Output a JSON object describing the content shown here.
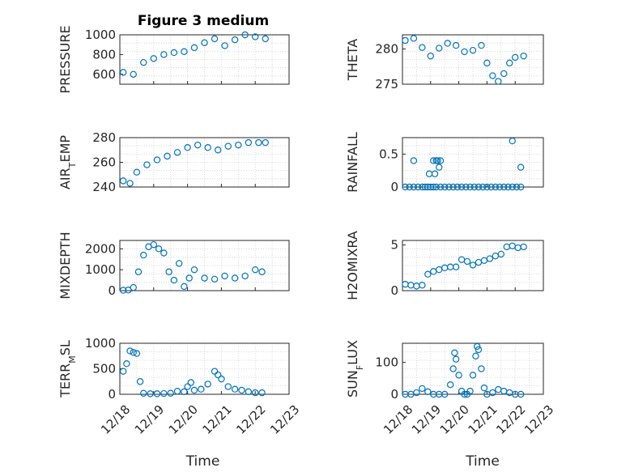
{
  "figure": {
    "title": "Figure 3 medium"
  },
  "colors": {
    "marker": "#0072BD",
    "axis": "#262626",
    "grid": "#cfcfcf"
  },
  "chart_data": [
    {
      "type": "scatter",
      "title": "Figure 3 medium",
      "ylabel": "PRESSURE",
      "ylim": [
        500,
        1000
      ],
      "yticks": [
        600,
        800,
        1000
      ],
      "yticklabels": [
        "600",
        "800",
        "1000"
      ],
      "xlim": [
        "12/18",
        "12/22"
      ],
      "grid": true,
      "show_xticklabels": false,
      "x": [
        0.1,
        0.4,
        0.7,
        1.0,
        1.3,
        1.6,
        1.9,
        2.2,
        2.5,
        2.8,
        3.1,
        3.4,
        3.7,
        4.0,
        4.3
      ],
      "y": [
        620,
        600,
        720,
        760,
        800,
        820,
        830,
        870,
        920,
        960,
        890,
        950,
        1000,
        980,
        960
      ]
    },
    {
      "type": "scatter",
      "ylabel": "THETA",
      "ylim": [
        275,
        282
      ],
      "yticks": [
        275,
        280
      ],
      "yticklabels": [
        "275",
        "280"
      ],
      "xlim": [
        "12/18",
        "12/22"
      ],
      "grid": true,
      "show_xticklabels": false,
      "x": [
        0.1,
        0.4,
        0.7,
        1.0,
        1.3,
        1.6,
        1.9,
        2.2,
        2.5,
        2.8,
        3.0,
        3.2,
        3.4,
        3.6,
        3.8,
        4.0,
        4.3
      ],
      "y": [
        281.2,
        281.5,
        280.2,
        279.0,
        280.1,
        280.8,
        280.5,
        279.6,
        279.8,
        280.5,
        278.0,
        276.2,
        275.4,
        276.5,
        278.0,
        278.8,
        279.0
      ]
    },
    {
      "type": "scatter",
      "ylabel": "AIR_TEMP",
      "ylim": [
        240,
        280
      ],
      "yticks": [
        240,
        260,
        280
      ],
      "yticklabels": [
        "240",
        "260",
        "280"
      ],
      "xlim": [
        "12/18",
        "12/22"
      ],
      "grid": true,
      "show_xticklabels": false,
      "x": [
        0.1,
        0.3,
        0.5,
        0.8,
        1.1,
        1.4,
        1.7,
        2.0,
        2.3,
        2.6,
        2.9,
        3.2,
        3.5,
        3.8,
        4.1,
        4.3
      ],
      "y": [
        245,
        243,
        252,
        258,
        262,
        265,
        268,
        272,
        274,
        272,
        270,
        273,
        274,
        276,
        276,
        276
      ]
    },
    {
      "type": "scatter",
      "ylabel": "RAINFALL",
      "ylim": [
        0,
        0.75
      ],
      "yticks": [
        0,
        0.5
      ],
      "yticklabels": [
        "0",
        "0.5"
      ],
      "xlim": [
        "12/18",
        "12/22"
      ],
      "grid": true,
      "show_xticklabels": false,
      "x": [
        0.1,
        0.25,
        0.4,
        0.55,
        0.7,
        0.8,
        0.9,
        1.0,
        1.1,
        1.2,
        1.35,
        1.5,
        1.65,
        1.8,
        1.95,
        2.1,
        2.25,
        2.4,
        2.55,
        2.7,
        2.85,
        3.0,
        3.15,
        3.3,
        3.45,
        3.6,
        3.75,
        3.9,
        4.05,
        4.2,
        0.4,
        0.95,
        1.1,
        1.15,
        1.2,
        1.3,
        1.25,
        1.35,
        3.9,
        4.2
      ],
      "y": [
        0,
        0,
        0,
        0,
        0,
        0,
        0,
        0,
        0,
        0,
        0,
        0,
        0,
        0,
        0,
        0,
        0,
        0,
        0,
        0,
        0,
        0,
        0,
        0,
        0,
        0,
        0,
        0,
        0,
        0,
        0.4,
        0.2,
        0.4,
        0.2,
        0.4,
        0.3,
        0.4,
        0.4,
        0.7,
        0.3
      ]
    },
    {
      "type": "scatter",
      "ylabel": "MIXDEPTH",
      "ylim": [
        0,
        2400
      ],
      "yticks": [
        0,
        1000,
        2000
      ],
      "yticklabels": [
        "0",
        "1000",
        "2000"
      ],
      "xlim": [
        "12/18",
        "12/22"
      ],
      "grid": true,
      "show_xticklabels": false,
      "x": [
        0.1,
        0.25,
        0.4,
        0.55,
        0.7,
        0.85,
        1.0,
        1.15,
        1.3,
        1.45,
        1.6,
        1.75,
        1.9,
        2.05,
        2.2,
        2.5,
        2.8,
        3.1,
        3.4,
        3.7,
        4.0,
        4.2
      ],
      "y": [
        20,
        30,
        150,
        900,
        1700,
        2100,
        2200,
        2000,
        1800,
        900,
        500,
        1300,
        200,
        600,
        1000,
        600,
        550,
        700,
        600,
        700,
        1000,
        900
      ]
    },
    {
      "type": "scatter",
      "ylabel": "H2OMIXRA",
      "ylim": [
        0,
        5.5
      ],
      "yticks": [
        0,
        5
      ],
      "yticklabels": [
        "0",
        "5"
      ],
      "xlim": [
        "12/18",
        "12/22"
      ],
      "grid": true,
      "show_xticklabels": false,
      "x": [
        0.1,
        0.3,
        0.5,
        0.7,
        0.9,
        1.1,
        1.3,
        1.5,
        1.7,
        1.9,
        2.1,
        2.3,
        2.5,
        2.7,
        2.9,
        3.1,
        3.3,
        3.5,
        3.7,
        3.9,
        4.1,
        4.3
      ],
      "y": [
        0.7,
        0.6,
        0.5,
        0.6,
        1.8,
        2.1,
        2.3,
        2.5,
        2.6,
        2.6,
        3.4,
        3.2,
        2.8,
        3.1,
        3.3,
        3.5,
        3.8,
        4.0,
        4.8,
        4.9,
        4.7,
        4.8
      ]
    },
    {
      "type": "scatter",
      "ylabel": "TERR_MSL",
      "ylim": [
        0,
        1000
      ],
      "yticks": [
        0,
        500,
        1000
      ],
      "yticklabels": [
        "0",
        "500",
        "1000"
      ],
      "xlabel": "Time",
      "xlim": [
        "12/18",
        "12/23"
      ],
      "xticks": [
        0,
        1,
        2,
        3,
        4,
        5
      ],
      "xticklabels": [
        "12/18",
        "12/19",
        "12/20",
        "12/21",
        "12/22",
        "12/23"
      ],
      "grid": true,
      "x": [
        0.1,
        0.2,
        0.3,
        0.4,
        0.5,
        0.6,
        0.7,
        0.9,
        1.1,
        1.3,
        1.5,
        1.7,
        1.9,
        2.0,
        2.1,
        2.2,
        2.4,
        2.6,
        2.8,
        2.9,
        3.0,
        3.2,
        3.4,
        3.6,
        3.8,
        4.0,
        4.2
      ],
      "y": [
        450,
        600,
        850,
        820,
        800,
        250,
        20,
        10,
        10,
        15,
        20,
        60,
        50,
        150,
        230,
        80,
        100,
        200,
        450,
        380,
        300,
        150,
        100,
        80,
        50,
        30,
        30
      ]
    },
    {
      "type": "scatter",
      "ylabel": "SUN_FLUX",
      "ylim": [
        0,
        160
      ],
      "yticks": [
        0,
        100
      ],
      "yticklabels": [
        "0",
        "100"
      ],
      "xlabel": "Time",
      "xlim": [
        "12/18",
        "12/23"
      ],
      "xticks": [
        0,
        1,
        2,
        3,
        4,
        5
      ],
      "xticklabels": [
        "12/18",
        "12/19",
        "12/20",
        "12/21",
        "12/22",
        "12/23"
      ],
      "grid": true,
      "x": [
        0.1,
        0.3,
        0.5,
        0.7,
        0.9,
        1.1,
        1.3,
        1.5,
        1.7,
        1.8,
        1.85,
        1.9,
        2.0,
        2.1,
        2.2,
        2.3,
        2.4,
        2.5,
        2.6,
        2.65,
        2.7,
        2.8,
        2.9,
        3.0,
        3.2,
        3.4,
        3.6,
        3.8,
        4.0,
        4.2
      ],
      "y": [
        0,
        0,
        5,
        18,
        8,
        0,
        0,
        0,
        30,
        80,
        130,
        110,
        60,
        10,
        0,
        0,
        10,
        60,
        120,
        150,
        140,
        80,
        20,
        0,
        5,
        15,
        10,
        5,
        0,
        0
      ]
    }
  ]
}
